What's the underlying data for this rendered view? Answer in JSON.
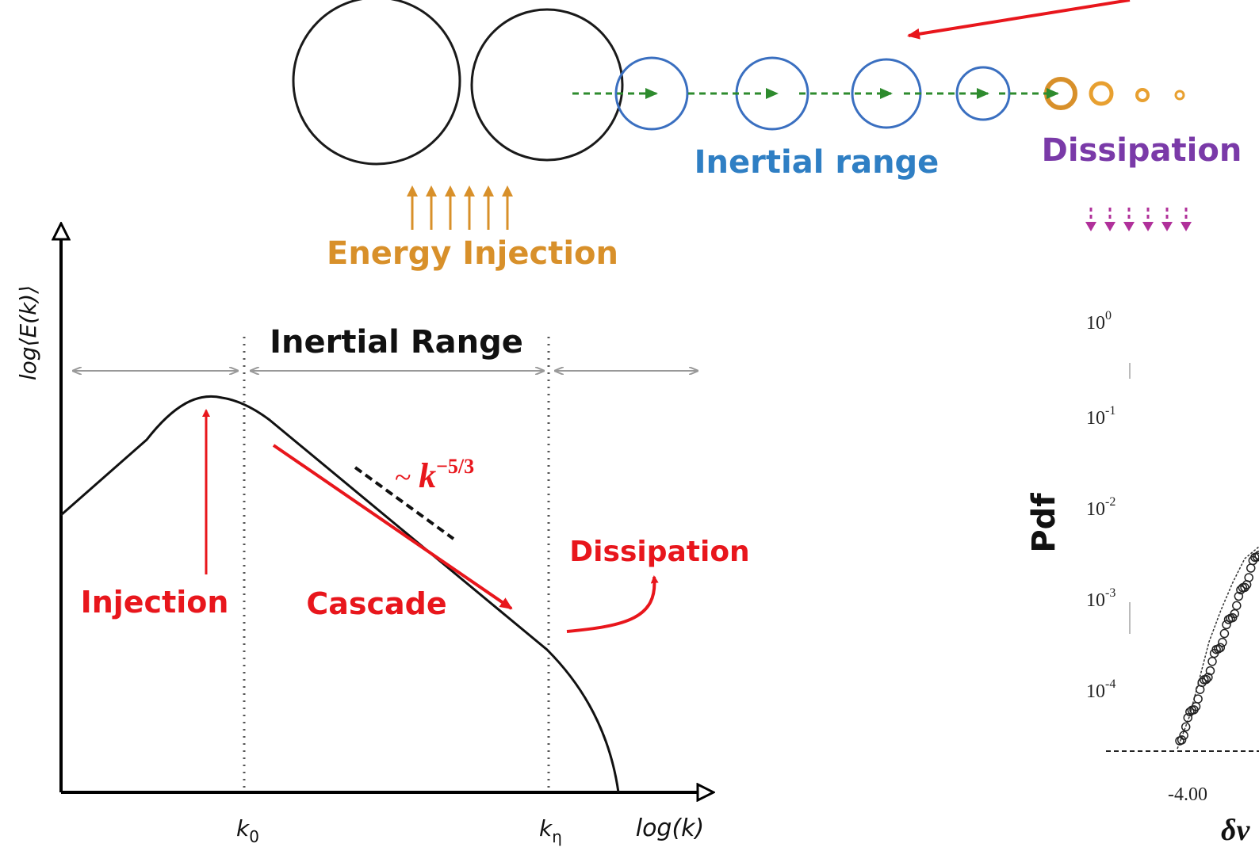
{
  "top": {
    "inertial_label": "Inertial range",
    "dissipation_label": "Dissipation",
    "injection_label": "Energy Injection"
  },
  "spectrum": {
    "y_axis_label": "log⟨E(k)⟩",
    "x_axis_label": "log(k)",
    "range_title": "Inertial Range",
    "slope_label": {
      "prefix": "~ ",
      "base": "k",
      "exponent": "−5/3"
    },
    "injection": "Injection",
    "cascade": "Cascade",
    "dissipation": "Dissipation",
    "k0": {
      "base": "k",
      "sub": "0"
    },
    "keta": {
      "base": "k",
      "sub": "η"
    }
  },
  "pdf": {
    "y_axis_label": "Pdf",
    "yticks": [
      {
        "base": "10",
        "exp": "0"
      },
      {
        "base": "10",
        "exp": "-1"
      },
      {
        "base": "10",
        "exp": "-2"
      },
      {
        "base": "10",
        "exp": "-3"
      },
      {
        "base": "10",
        "exp": "-4"
      }
    ],
    "xtick": "-4.00",
    "x_axis_label": "δv"
  }
}
